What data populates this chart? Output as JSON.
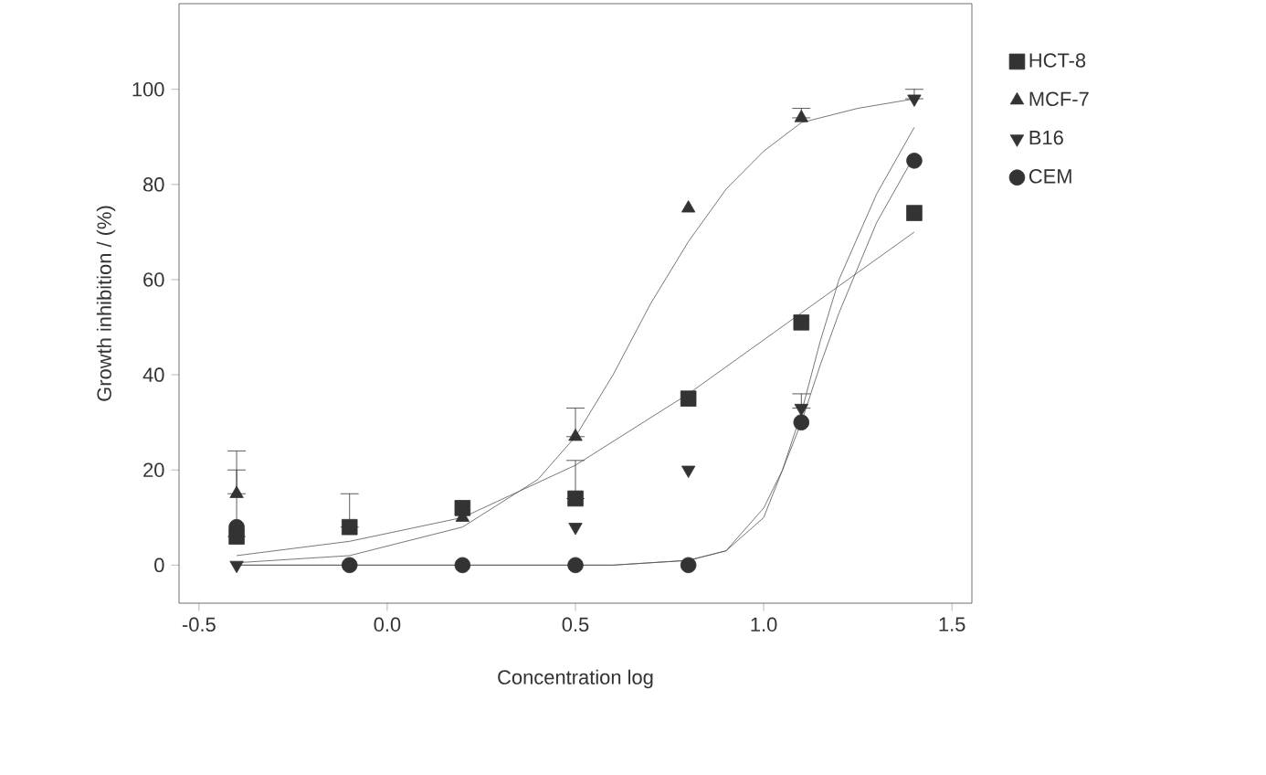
{
  "chart_data": {
    "type": "scatter",
    "xlabel": "Concentration log",
    "ylabel": "Growth inhibition / (%)",
    "xlim": [
      -0.553,
      1.553
    ],
    "ylim": [
      -8,
      118
    ],
    "xticks": [
      -0.5,
      {
        "value": 0,
        "label": "0.0"
      },
      0.5,
      {
        "value": 1,
        "label": "1.0"
      },
      1.5
    ],
    "yticks": [
      0,
      20,
      40,
      60,
      80,
      100
    ],
    "legend": "right",
    "grid": false,
    "x": [
      -0.4,
      -0.1,
      0.2,
      0.5,
      0.8,
      1.1,
      1.4
    ],
    "series": [
      {
        "name": "HCT-8",
        "color": "#333333",
        "marker": "square",
        "values": [
          6,
          8,
          12,
          14,
          35,
          51,
          74
        ],
        "errors": [
          [
            6,
            20
          ],
          [
            8,
            15
          ],
          null,
          [
            14,
            22
          ],
          null,
          null,
          null
        ]
      },
      {
        "name": "MCF-7",
        "color": "#333333",
        "marker": "triangle",
        "values": [
          15,
          null,
          10,
          27,
          75,
          94,
          null
        ],
        "errors": [
          [
            15,
            24
          ],
          null,
          null,
          [
            27,
            33
          ],
          null,
          [
            94,
            96
          ],
          null
        ]
      },
      {
        "name": "B16",
        "color": "#333333",
        "marker": "triangle-down",
        "values": [
          0,
          null,
          null,
          8,
          20,
          33,
          98
        ],
        "errors": [
          null,
          null,
          null,
          null,
          null,
          [
            33,
            36
          ],
          [
            98,
            100
          ]
        ]
      },
      {
        "name": "CEM",
        "color": "#333333",
        "marker": "circle",
        "values": [
          8,
          0,
          0,
          0,
          0,
          30,
          85
        ]
      },
      {
        "type": "line",
        "color": "#555555",
        "marker": "none",
        "x": [
          -0.4,
          -0.1,
          0.2,
          0.5,
          0.8,
          1.1,
          1.4
        ],
        "values": [
          2,
          5,
          10,
          21,
          36,
          53,
          70
        ]
      },
      {
        "type": "line",
        "color": "#555555",
        "marker": "none",
        "x": [
          -0.4,
          -0.1,
          0.2,
          0.4,
          0.5,
          0.6,
          0.7,
          0.8,
          0.9,
          1.0,
          1.1,
          1.25,
          1.4
        ],
        "values": [
          0.5,
          2,
          8,
          18,
          27,
          40,
          55,
          68,
          79,
          87,
          93,
          96,
          98
        ]
      },
      {
        "type": "line",
        "color": "#555555",
        "marker": "none",
        "x": [
          -0.4,
          0.2,
          0.6,
          0.8,
          0.9,
          1.0,
          1.05,
          1.1,
          1.15,
          1.2,
          1.3,
          1.4
        ],
        "values": [
          0,
          0,
          0,
          1,
          3,
          12,
          20,
          32,
          47,
          60,
          78,
          92
        ]
      },
      {
        "type": "line",
        "color": "#555555",
        "marker": "none",
        "x": [
          -0.4,
          0.2,
          0.6,
          0.8,
          0.9,
          1.0,
          1.1,
          1.15,
          1.2,
          1.3,
          1.4
        ],
        "values": [
          0,
          0,
          0,
          1,
          3,
          10,
          30,
          42,
          53,
          72,
          86
        ]
      }
    ]
  }
}
